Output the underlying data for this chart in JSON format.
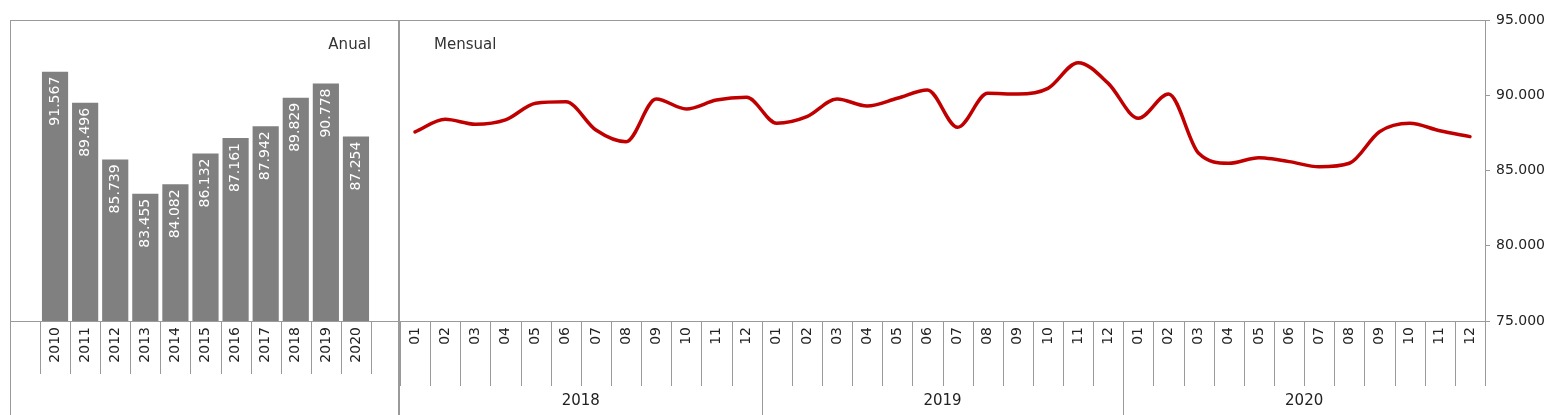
{
  "chart_data": [
    {
      "type": "bar",
      "title": "Anual",
      "categories": [
        "2010",
        "2011",
        "2012",
        "2013",
        "2014",
        "2015",
        "2016",
        "2017",
        "2018",
        "2019",
        "2020"
      ],
      "values": [
        91567,
        89496,
        85739,
        83455,
        84082,
        86132,
        87161,
        87942,
        89829,
        90778,
        87254
      ],
      "value_labels": [
        "91.567",
        "89.496",
        "85.739",
        "83.455",
        "84.082",
        "86.132",
        "87.161",
        "87.942",
        "89.829",
        "90.778",
        "87.254"
      ],
      "color": "#808080",
      "ylim": [
        75000,
        95000
      ],
      "tick_labels": "x",
      "legend": false,
      "grid": false
    },
    {
      "type": "line",
      "title": "Mensual",
      "categories": [
        "01",
        "02",
        "03",
        "04",
        "05",
        "06",
        "07",
        "08",
        "09",
        "10",
        "11",
        "12",
        "01",
        "02",
        "03",
        "04",
        "05",
        "06",
        "07",
        "08",
        "09",
        "10",
        "11",
        "12",
        "01",
        "02",
        "03",
        "04",
        "05",
        "06",
        "07",
        "08",
        "09",
        "10",
        "11",
        "12"
      ],
      "series": [
        {
          "color": "#c00000",
          "values": [
            87560,
            88400,
            88070,
            88360,
            89470,
            89570,
            87690,
            86910,
            89750,
            89090,
            89680,
            89860,
            88140,
            88580,
            89750,
            89290,
            89800,
            90350,
            87870,
            90130,
            90080,
            90460,
            92160,
            90790,
            88470,
            90080,
            86140,
            85480,
            85850,
            85590,
            85250,
            85480,
            87580,
            88140,
            87640,
            87250
          ]
        }
      ],
      "ylim": [
        75000,
        95000
      ],
      "yticks": [
        {
          "value": 75000,
          "label": "75.000"
        },
        {
          "value": 80000,
          "label": "80.000"
        },
        {
          "value": 85000,
          "label": "85.000"
        },
        {
          "value": 90000,
          "label": "90.000"
        },
        {
          "value": 95000,
          "label": "95.000"
        }
      ],
      "annotations": [
        "2018",
        "2019",
        "2020"
      ],
      "marker": "none",
      "line_style": "solid",
      "legend": false,
      "grid": false
    }
  ]
}
